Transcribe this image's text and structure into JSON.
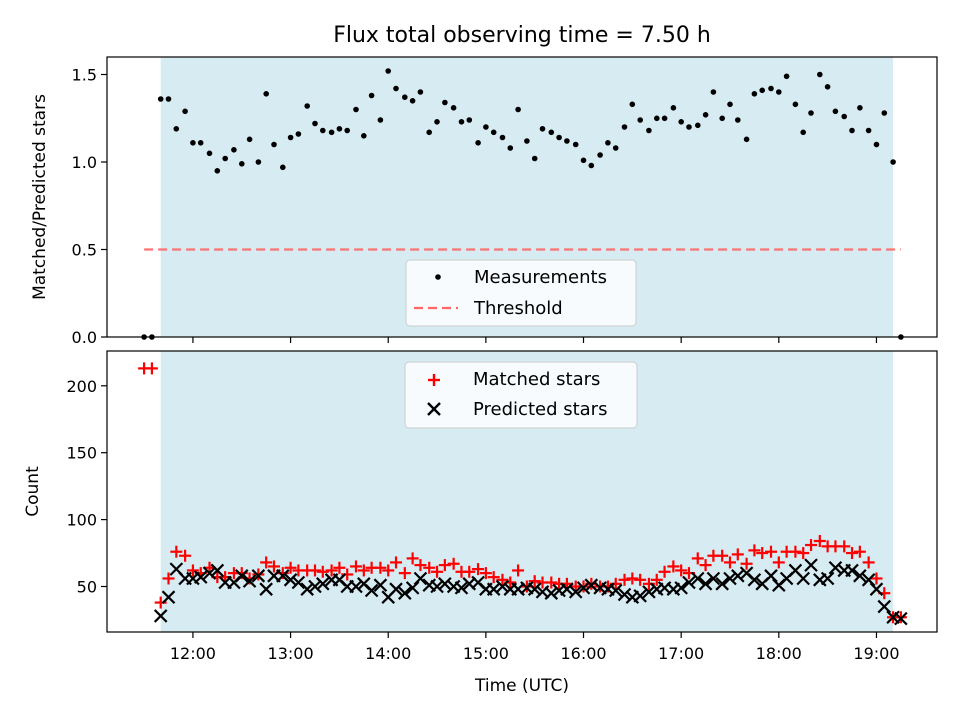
{
  "chart_data": [
    {
      "type": "scatter",
      "title": "Flux total observing time = 7.50 h",
      "ylabel": "Matched/Predicted stars",
      "xlabel": "",
      "xlim": [
        11.12,
        19.62
      ],
      "ylim": [
        0.0,
        1.6
      ],
      "yticks": [
        0.0,
        0.5,
        1.0,
        1.5
      ],
      "ytick_labels": [
        "0.0",
        "0.5",
        "1.0",
        "1.5"
      ],
      "xticks": [
        12,
        13,
        14,
        15,
        16,
        17,
        18,
        19
      ],
      "grid": false,
      "legend": {
        "position": "lower center",
        "entries": [
          "Measurements",
          "Threshold"
        ]
      },
      "shaded_span": {
        "from": 11.67,
        "to": 19.17,
        "color": "#add8e6"
      },
      "threshold": {
        "value": 0.5,
        "from": 11.5,
        "to": 19.25,
        "color": "#ff6666"
      },
      "series": [
        {
          "name": "Measurements",
          "color": "#000000",
          "marker": "dot",
          "x": [
            11.5,
            11.58,
            11.67,
            11.75,
            11.83,
            11.92,
            12.0,
            12.08,
            12.17,
            12.25,
            12.33,
            12.42,
            12.5,
            12.58,
            12.67,
            12.75,
            12.83,
            12.92,
            13.0,
            13.08,
            13.17,
            13.25,
            13.33,
            13.42,
            13.5,
            13.58,
            13.67,
            13.75,
            13.83,
            13.92,
            14.0,
            14.08,
            14.17,
            14.25,
            14.33,
            14.42,
            14.5,
            14.58,
            14.67,
            14.75,
            14.83,
            14.92,
            15.0,
            15.08,
            15.17,
            15.25,
            15.33,
            15.42,
            15.5,
            15.58,
            15.67,
            15.75,
            15.83,
            15.92,
            16.0,
            16.08,
            16.17,
            16.25,
            16.33,
            16.42,
            16.5,
            16.58,
            16.67,
            16.75,
            16.83,
            16.92,
            17.0,
            17.08,
            17.17,
            17.25,
            17.33,
            17.42,
            17.5,
            17.58,
            17.67,
            17.75,
            17.83,
            17.92,
            18.0,
            18.08,
            18.17,
            18.25,
            18.33,
            18.42,
            18.5,
            18.58,
            18.67,
            18.75,
            18.83,
            18.92,
            19.0,
            19.08,
            19.17,
            19.25
          ],
          "y": [
            0.0,
            0.0,
            1.36,
            1.36,
            1.19,
            1.29,
            1.11,
            1.11,
            1.05,
            0.95,
            1.02,
            1.07,
            0.99,
            1.13,
            1.0,
            1.39,
            1.1,
            0.97,
            1.14,
            1.16,
            1.32,
            1.22,
            1.18,
            1.17,
            1.19,
            1.18,
            1.3,
            1.15,
            1.38,
            1.24,
            1.52,
            1.42,
            1.37,
            1.35,
            1.4,
            1.17,
            1.23,
            1.34,
            1.31,
            1.23,
            1.24,
            1.11,
            1.2,
            1.17,
            1.14,
            1.08,
            1.3,
            1.12,
            1.02,
            1.19,
            1.17,
            1.14,
            1.12,
            1.1,
            1.01,
            0.98,
            1.04,
            1.11,
            1.08,
            1.2,
            1.33,
            1.24,
            1.18,
            1.25,
            1.25,
            1.31,
            1.23,
            1.2,
            1.21,
            1.27,
            1.4,
            1.25,
            1.33,
            1.24,
            1.13,
            1.39,
            1.41,
            1.42,
            1.4,
            1.49,
            1.33,
            1.17,
            1.28,
            1.5,
            1.43,
            1.29,
            1.26,
            1.18,
            1.31,
            1.18,
            1.1,
            1.28,
            1.0,
            0.0
          ]
        }
      ]
    },
    {
      "type": "scatter",
      "title": "",
      "xlabel": "Time (UTC)",
      "ylabel": "Count",
      "xlim": [
        11.12,
        19.62
      ],
      "ylim": [
        16,
        226
      ],
      "yticks": [
        50,
        100,
        150,
        200
      ],
      "ytick_labels": [
        "50",
        "100",
        "150",
        "200"
      ],
      "xticks": [
        12,
        13,
        14,
        15,
        16,
        17,
        18,
        19
      ],
      "xtick_labels": [
        "12:00",
        "13:00",
        "14:00",
        "15:00",
        "16:00",
        "17:00",
        "18:00",
        "19:00"
      ],
      "grid": false,
      "legend": {
        "position": "upper center",
        "entries": [
          "Matched stars",
          "Predicted stars"
        ]
      },
      "shaded_span": {
        "from": 11.67,
        "to": 19.17,
        "color": "#add8e6"
      },
      "series": [
        {
          "name": "Matched stars",
          "color": "#ff0000",
          "marker": "plus",
          "x": [
            11.5,
            11.58,
            11.67,
            11.75,
            11.83,
            11.92,
            12.0,
            12.08,
            12.17,
            12.25,
            12.33,
            12.42,
            12.5,
            12.58,
            12.67,
            12.75,
            12.83,
            12.92,
            13.0,
            13.08,
            13.17,
            13.25,
            13.33,
            13.42,
            13.5,
            13.58,
            13.67,
            13.75,
            13.83,
            13.92,
            14.0,
            14.08,
            14.17,
            14.25,
            14.33,
            14.42,
            14.5,
            14.58,
            14.67,
            14.75,
            14.83,
            14.92,
            15.0,
            15.08,
            15.17,
            15.25,
            15.33,
            15.42,
            15.5,
            15.58,
            15.67,
            15.75,
            15.83,
            15.92,
            16.0,
            16.08,
            16.17,
            16.25,
            16.33,
            16.42,
            16.5,
            16.58,
            16.67,
            16.75,
            16.83,
            16.92,
            17.0,
            17.08,
            17.17,
            17.25,
            17.33,
            17.42,
            17.5,
            17.58,
            17.67,
            17.75,
            17.83,
            17.92,
            18.0,
            18.08,
            18.17,
            18.25,
            18.33,
            18.42,
            18.5,
            18.58,
            18.67,
            18.75,
            18.83,
            18.92,
            19.0,
            19.08,
            19.17,
            19.25
          ],
          "y": [
            213,
            213,
            38,
            56,
            76,
            73,
            62,
            60,
            64,
            57,
            57,
            60,
            60,
            56,
            59,
            68,
            65,
            60,
            64,
            62,
            62,
            62,
            61,
            62,
            64,
            59,
            65,
            62,
            64,
            64,
            62,
            68,
            60,
            71,
            66,
            64,
            61,
            66,
            67,
            61,
            61,
            63,
            60,
            57,
            55,
            53,
            62,
            50,
            54,
            53,
            53,
            52,
            52,
            50,
            50,
            52,
            50,
            50,
            52,
            55,
            56,
            55,
            52,
            55,
            61,
            65,
            62,
            60,
            71,
            66,
            73,
            73,
            68,
            74,
            67,
            77,
            75,
            76,
            68,
            76,
            76,
            75,
            81,
            84,
            80,
            80,
            80,
            75,
            76,
            68,
            56,
            45,
            27,
            27
          ]
        },
        {
          "name": "Predicted stars",
          "color": "#000000",
          "marker": "x",
          "x": [
            11.67,
            11.75,
            11.83,
            11.92,
            12.0,
            12.08,
            12.17,
            12.25,
            12.33,
            12.42,
            12.5,
            12.58,
            12.67,
            12.75,
            12.83,
            12.92,
            13.0,
            13.08,
            13.17,
            13.25,
            13.33,
            13.42,
            13.5,
            13.58,
            13.67,
            13.75,
            13.83,
            13.92,
            14.0,
            14.08,
            14.17,
            14.25,
            14.33,
            14.42,
            14.5,
            14.58,
            14.67,
            14.75,
            14.83,
            14.92,
            15.0,
            15.08,
            15.17,
            15.25,
            15.33,
            15.42,
            15.5,
            15.58,
            15.67,
            15.75,
            15.83,
            15.92,
            16.0,
            16.08,
            16.17,
            16.25,
            16.33,
            16.42,
            16.5,
            16.58,
            16.67,
            16.75,
            16.83,
            16.92,
            17.0,
            17.08,
            17.17,
            17.25,
            17.33,
            17.42,
            17.5,
            17.58,
            17.67,
            17.75,
            17.83,
            17.92,
            18.0,
            18.08,
            18.17,
            18.25,
            18.33,
            18.42,
            18.5,
            18.58,
            18.67,
            18.75,
            18.83,
            18.92,
            19.0,
            19.08,
            19.17,
            19.25
          ],
          "y": [
            28,
            42,
            63,
            56,
            56,
            57,
            60,
            62,
            53,
            53,
            58,
            54,
            58,
            48,
            58,
            58,
            55,
            53,
            48,
            50,
            52,
            55,
            55,
            50,
            50,
            52,
            47,
            51,
            42,
            48,
            45,
            49,
            56,
            51,
            50,
            52,
            50,
            49,
            52,
            53,
            48,
            48,
            50,
            48,
            48,
            49,
            48,
            46,
            45,
            47,
            48,
            46,
            49,
            51,
            49,
            48,
            47,
            44,
            42,
            43,
            46,
            48,
            49,
            48,
            49,
            53,
            56,
            52,
            56,
            52,
            56,
            58,
            60,
            55,
            52,
            58,
            51,
            56,
            62,
            56,
            66,
            55,
            56,
            64,
            62,
            62,
            58,
            55,
            48,
            35,
            27,
            26
          ]
        }
      ]
    }
  ]
}
